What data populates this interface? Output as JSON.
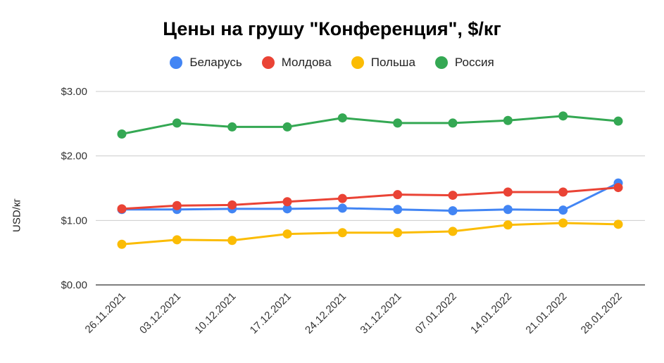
{
  "chart_data": {
    "type": "line",
    "title": "Цены на грушу \"Конференция\", $/кг",
    "ylabel": "USD/кг",
    "xlabel": "",
    "ylim": [
      0,
      3
    ],
    "yticks": [
      "$0.00",
      "$1.00",
      "$2.00",
      "$3.00"
    ],
    "grid": true,
    "legend_position": "top",
    "categories": [
      "26.11.2021",
      "03.12.2021",
      "10.12.2021",
      "17.12.2021",
      "24.12.2021",
      "31.12.2021",
      "07.01.2022",
      "14.01.2022",
      "21.01.2022",
      "28.01.2022"
    ],
    "series": [
      {
        "name": "Беларусь",
        "color": "#4285f4",
        "values": [
          1.17,
          1.17,
          1.18,
          1.18,
          1.19,
          1.17,
          1.15,
          1.17,
          1.16,
          1.58
        ]
      },
      {
        "name": "Молдова",
        "color": "#ea4335",
        "values": [
          1.18,
          1.23,
          1.24,
          1.29,
          1.34,
          1.4,
          1.39,
          1.44,
          1.44,
          1.51
        ]
      },
      {
        "name": "Польша",
        "color": "#fbbc04",
        "values": [
          0.63,
          0.7,
          0.69,
          0.79,
          0.81,
          0.81,
          0.83,
          0.93,
          0.96,
          0.94
        ]
      },
      {
        "name": "Россия",
        "color": "#34a853",
        "values": [
          2.34,
          2.51,
          2.45,
          2.45,
          2.59,
          2.51,
          2.51,
          2.55,
          2.62,
          2.54
        ]
      }
    ]
  }
}
